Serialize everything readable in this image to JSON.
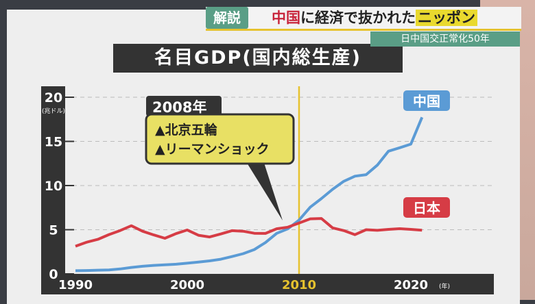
{
  "banner": {
    "tag": "解説",
    "headline_red": "中国",
    "headline_mid": "に経済で抜かれた",
    "headline_highlight": "ニッポン",
    "subtitle": "日中国交正常化50年"
  },
  "colors": {
    "china": "#5b9bd5",
    "japan": "#d63c45",
    "marker": "#e6c22e",
    "axis": "#333333"
  },
  "chart_data": {
    "type": "line",
    "title": "名目GDP(国内総生産)",
    "ylabel": "(兆ドル)",
    "xlabel": "(年)",
    "ylim": [
      0,
      20
    ],
    "xlim": [
      1990,
      2021
    ],
    "yticks": [
      "0",
      "5",
      "10",
      "15",
      "20"
    ],
    "xticks": [
      "1990",
      "2000",
      "2010",
      "2020"
    ],
    "grid": true,
    "x": [
      1990,
      1991,
      1992,
      1993,
      1994,
      1995,
      1996,
      1997,
      1998,
      1999,
      2000,
      2001,
      2002,
      2003,
      2004,
      2005,
      2006,
      2007,
      2008,
      2009,
      2010,
      2011,
      2012,
      2013,
      2014,
      2015,
      2016,
      2017,
      2018,
      2019,
      2020,
      2021
    ],
    "series": [
      {
        "name": "中国",
        "values": [
          0.36,
          0.38,
          0.42,
          0.44,
          0.56,
          0.73,
          0.86,
          0.96,
          1.03,
          1.09,
          1.21,
          1.34,
          1.47,
          1.66,
          1.96,
          2.29,
          2.75,
          3.55,
          4.59,
          5.1,
          6.09,
          7.55,
          8.53,
          9.57,
          10.48,
          11.06,
          11.23,
          12.31,
          13.89,
          14.28,
          14.69,
          17.73
        ]
      },
      {
        "name": "日本",
        "values": [
          3.13,
          3.58,
          3.91,
          4.45,
          4.91,
          5.45,
          4.83,
          4.41,
          4.03,
          4.56,
          4.97,
          4.37,
          4.18,
          4.52,
          4.89,
          4.83,
          4.6,
          4.58,
          5.11,
          5.29,
          5.76,
          6.23,
          6.27,
          5.21,
          4.9,
          4.44,
          5.0,
          4.93,
          5.04,
          5.12,
          5.04,
          4.94
        ]
      }
    ],
    "marker_year": 2010,
    "annotation": {
      "year_label": "2008年",
      "lines": [
        "▲北京五輪",
        "▲リーマンショック"
      ],
      "year": 2008
    }
  }
}
